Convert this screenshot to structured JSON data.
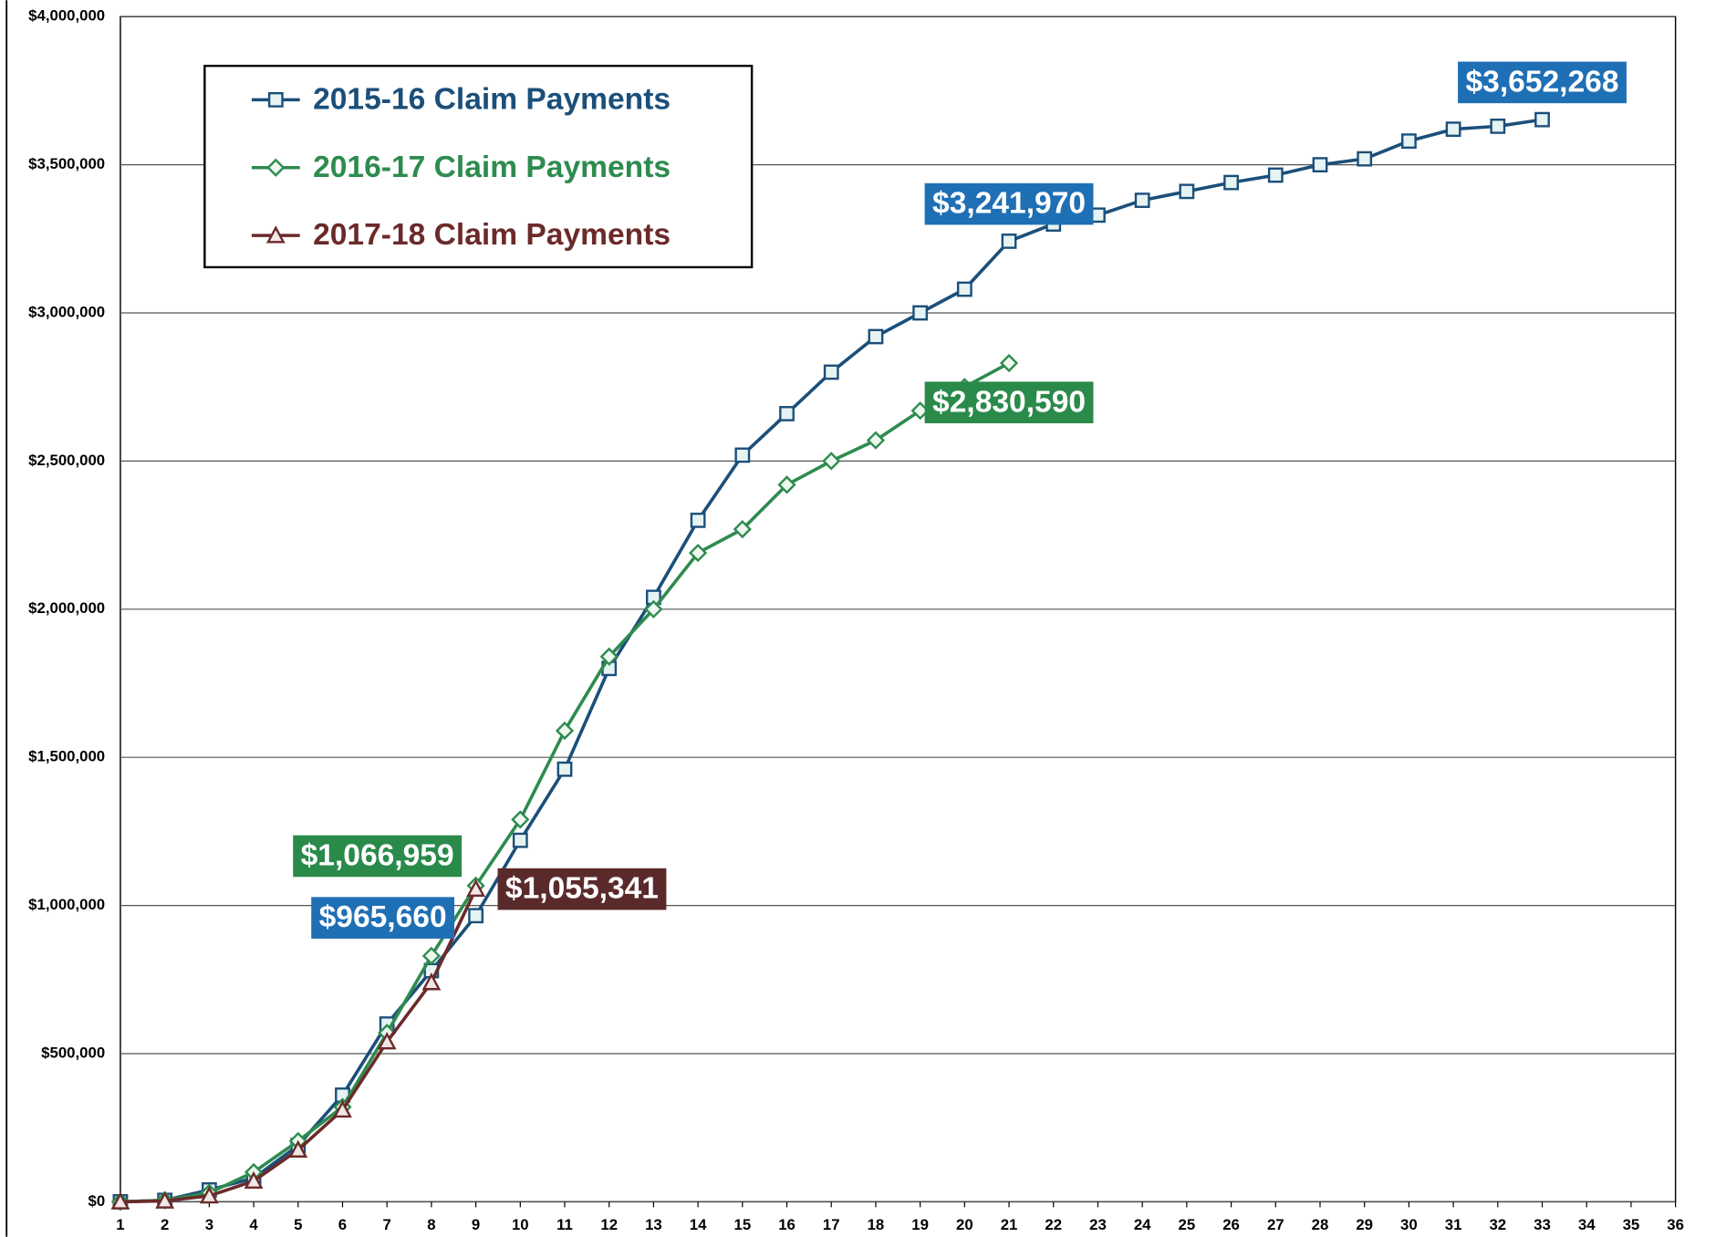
{
  "chart_data": {
    "type": "line",
    "xlim": [
      1,
      36
    ],
    "xticks": [
      1,
      2,
      3,
      4,
      5,
      6,
      7,
      8,
      9,
      10,
      11,
      12,
      13,
      14,
      15,
      16,
      17,
      18,
      19,
      20,
      21,
      22,
      23,
      24,
      25,
      26,
      27,
      28,
      29,
      30,
      31,
      32,
      33,
      34,
      35,
      36
    ],
    "ylim": [
      0,
      4000000
    ],
    "yticks": [
      {
        "value": 0,
        "label": "$0"
      },
      {
        "value": 500000,
        "label": "$500,000"
      },
      {
        "value": 1000000,
        "label": "$1,000,000"
      },
      {
        "value": 1500000,
        "label": "$1,500,000"
      },
      {
        "value": 2000000,
        "label": "$2,000,000"
      },
      {
        "value": 2500000,
        "label": "$2,500,000"
      },
      {
        "value": 3000000,
        "label": "$3,000,000"
      },
      {
        "value": 3500000,
        "label": "$3,500,000"
      },
      {
        "value": 4000000,
        "label": "$4,000,000"
      }
    ],
    "grid": true,
    "legend": "upper left",
    "series": [
      {
        "name": "2015-16 Claim Payments",
        "color": "#1b4f7a",
        "label_color": "#1f6fb5",
        "marker": "square",
        "x": [
          1,
          2,
          3,
          4,
          5,
          6,
          7,
          8,
          9,
          10,
          11,
          12,
          13,
          14,
          15,
          16,
          17,
          18,
          19,
          20,
          21,
          22,
          23,
          24,
          25,
          26,
          27,
          28,
          29,
          30,
          31,
          32,
          33
        ],
        "values": [
          0,
          5000,
          40000,
          80000,
          190000,
          360000,
          600000,
          780000,
          965660,
          1220000,
          1460000,
          1800000,
          2040000,
          2300000,
          2520000,
          2660000,
          2800000,
          2920000,
          3000000,
          3080000,
          3241970,
          3300000,
          3330000,
          3380000,
          3410000,
          3440000,
          3465000,
          3500000,
          3520000,
          3580000,
          3620000,
          3630000,
          3652268
        ],
        "value_labels": [
          null,
          null,
          null,
          null,
          null,
          null,
          null,
          null,
          "$965,660",
          null,
          null,
          null,
          null,
          null,
          null,
          null,
          null,
          null,
          null,
          null,
          "$3,241,970",
          null,
          null,
          null,
          null,
          null,
          null,
          null,
          null,
          null,
          null,
          null,
          "$3,652,268"
        ]
      },
      {
        "name": "2016-17 Claim Payments",
        "color": "#2e8b4f",
        "label_color": "#2a8a4a",
        "marker": "diamond",
        "x": [
          1,
          2,
          3,
          4,
          5,
          6,
          7,
          8,
          9,
          10,
          11,
          12,
          13,
          14,
          15,
          16,
          17,
          18,
          19,
          20,
          21
        ],
        "values": [
          0,
          5000,
          30000,
          100000,
          205000,
          320000,
          570000,
          830000,
          1066959,
          1290000,
          1590000,
          1840000,
          2000000,
          2190000,
          2270000,
          2420000,
          2500000,
          2570000,
          2670000,
          2750000,
          2830590
        ],
        "value_labels": [
          null,
          null,
          null,
          null,
          null,
          null,
          null,
          null,
          "$1,066,959",
          null,
          null,
          null,
          null,
          null,
          null,
          null,
          null,
          null,
          null,
          null,
          "$2,830,590"
        ]
      },
      {
        "name": "2017-18 Claim Payments",
        "color": "#6b2a2a",
        "label_color": "#5a2a2a",
        "marker": "triangle",
        "x": [
          1,
          2,
          3,
          4,
          5,
          6,
          7,
          8,
          9
        ],
        "values": [
          0,
          3000,
          20000,
          70000,
          175000,
          310000,
          540000,
          740000,
          1055341
        ],
        "value_labels": [
          null,
          null,
          null,
          null,
          null,
          null,
          null,
          null,
          "$1,055,341"
        ]
      }
    ]
  }
}
